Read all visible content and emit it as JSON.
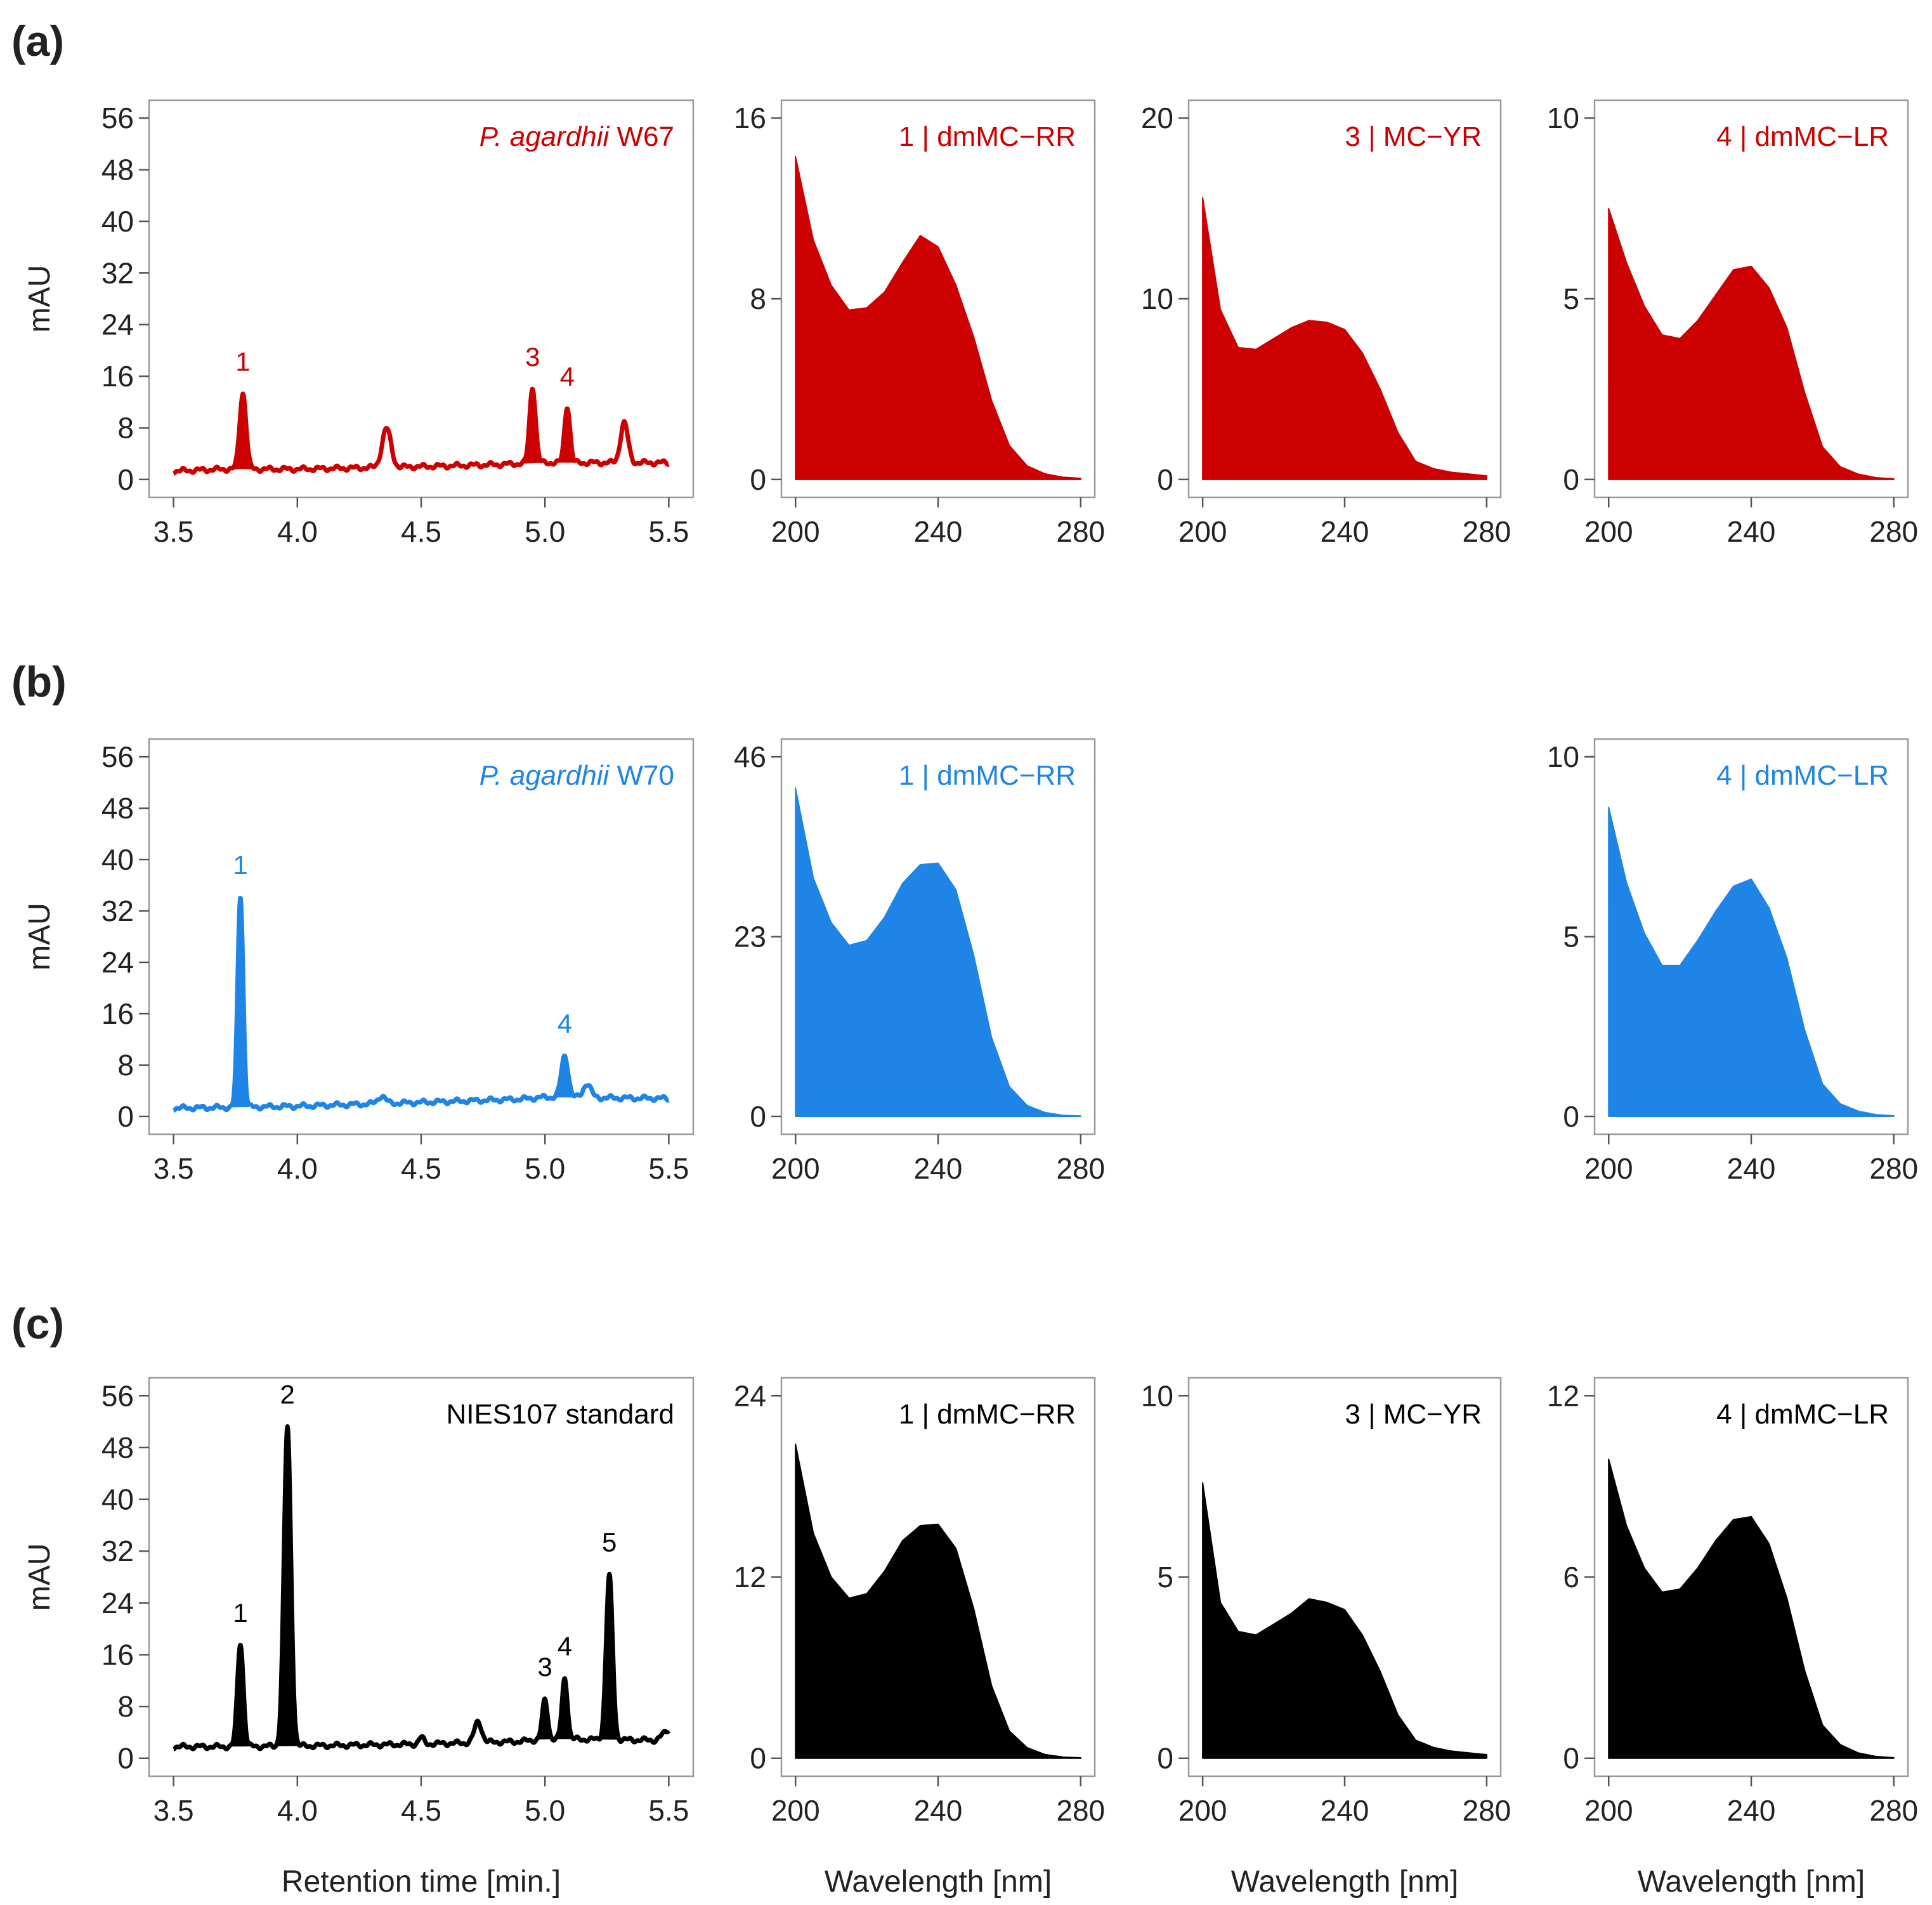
{
  "figure": {
    "row_labels": [
      "(a)",
      "(b)",
      "(c)"
    ],
    "colors": {
      "a": "#cc0000",
      "b": "#1e84e6",
      "c": "#000000",
      "text": "#222222"
    }
  },
  "chart_data": [
    {
      "id": "a-chrom",
      "type": "line",
      "row": "(a)",
      "title": "P. agardhii W67",
      "title_italic": "P. agardhii",
      "title_rest": " W67",
      "xlabel": "",
      "ylabel": "mAU",
      "xlim": [
        3.5,
        5.5
      ],
      "ylim": [
        0,
        56
      ],
      "xticks": [
        "3.5",
        "4.0",
        "4.5",
        "5.0",
        "5.5"
      ],
      "yticks": [
        "0",
        "8",
        "16",
        "24",
        "32",
        "40",
        "48",
        "56"
      ],
      "baseline": [
        [
          3.5,
          1.3
        ],
        [
          3.7,
          1.6
        ],
        [
          4.0,
          1.6
        ],
        [
          4.5,
          2.0
        ],
        [
          4.8,
          2.3
        ],
        [
          5.0,
          2.6
        ],
        [
          5.5,
          2.6
        ]
      ],
      "peaks": [
        {
          "label": "1",
          "x": 3.78,
          "height": 11.8,
          "sigma": 0.013,
          "filled": true
        },
        {
          "label": "",
          "x": 4.36,
          "height": 6.0,
          "sigma": 0.018,
          "filled": false
        },
        {
          "label": "3",
          "x": 4.95,
          "height": 11.8,
          "sigma": 0.012,
          "filled": true
        },
        {
          "label": "4",
          "x": 5.09,
          "height": 8.8,
          "sigma": 0.011,
          "filled": true
        },
        {
          "label": "",
          "x": 5.32,
          "height": 6.2,
          "sigma": 0.015,
          "filled": false
        }
      ]
    },
    {
      "id": "a-spec1",
      "type": "area",
      "row": "(a)",
      "title": "1 | dmMC−RR",
      "xlim": [
        200,
        280
      ],
      "ylim": [
        0,
        16
      ],
      "xticks": [
        "200",
        "240",
        "280"
      ],
      "yticks": [
        "0",
        "8",
        "16"
      ],
      "x": [
        200,
        205,
        210,
        215,
        220,
        225,
        230,
        235,
        240,
        245,
        250,
        255,
        260,
        265,
        270,
        275,
        280
      ],
      "y": [
        14.3,
        10.6,
        8.6,
        7.5,
        7.6,
        8.3,
        9.6,
        10.8,
        10.3,
        8.6,
        6.3,
        3.5,
        1.5,
        0.6,
        0.25,
        0.1,
        0.05
      ]
    },
    {
      "id": "a-spec3",
      "type": "area",
      "row": "(a)",
      "title": "3 | MC−YR",
      "xlim": [
        200,
        280
      ],
      "ylim": [
        0,
        20
      ],
      "xticks": [
        "200",
        "240",
        "280"
      ],
      "yticks": [
        "0",
        "10",
        "20"
      ],
      "x": [
        200,
        205,
        210,
        215,
        220,
        225,
        230,
        235,
        240,
        245,
        250,
        255,
        260,
        265,
        270,
        275,
        280
      ],
      "y": [
        15.6,
        9.4,
        7.3,
        7.2,
        7.8,
        8.4,
        8.8,
        8.7,
        8.3,
        7.0,
        5.0,
        2.6,
        1.0,
        0.6,
        0.4,
        0.3,
        0.2
      ]
    },
    {
      "id": "a-spec4",
      "type": "area",
      "row": "(a)",
      "title": "4 | dmMC−LR",
      "xlim": [
        200,
        280
      ],
      "ylim": [
        0,
        10
      ],
      "xticks": [
        "200",
        "240",
        "280"
      ],
      "yticks": [
        "0",
        "5",
        "10"
      ],
      "x": [
        200,
        205,
        210,
        215,
        220,
        225,
        230,
        235,
        240,
        245,
        250,
        255,
        260,
        265,
        270,
        275,
        280
      ],
      "y": [
        7.5,
        6.0,
        4.8,
        4.0,
        3.9,
        4.4,
        5.1,
        5.8,
        5.9,
        5.3,
        4.2,
        2.4,
        0.9,
        0.35,
        0.15,
        0.05,
        0.02
      ]
    },
    {
      "id": "b-chrom",
      "type": "line",
      "row": "(b)",
      "title": "P. agardhii W70",
      "title_italic": "P. agardhii",
      "title_rest": " W70",
      "xlabel": "",
      "ylabel": "mAU",
      "xlim": [
        3.5,
        5.5
      ],
      "ylim": [
        0,
        56
      ],
      "xticks": [
        "3.5",
        "4.0",
        "4.5",
        "5.0",
        "5.5"
      ],
      "yticks": [
        "0",
        "8",
        "16",
        "24",
        "32",
        "40",
        "48",
        "56"
      ],
      "baseline": [
        [
          3.5,
          1.3
        ],
        [
          3.7,
          1.4
        ],
        [
          4.0,
          1.6
        ],
        [
          4.5,
          2.2
        ],
        [
          4.9,
          2.7
        ],
        [
          5.0,
          3.0
        ],
        [
          5.5,
          2.8
        ]
      ],
      "peaks": [
        {
          "label": "1",
          "x": 3.77,
          "height": 33.0,
          "sigma": 0.011,
          "filled": true
        },
        {
          "label": "",
          "x": 4.34,
          "height": 1.2,
          "sigma": 0.015,
          "filled": false
        },
        {
          "label": "4",
          "x": 5.08,
          "height": 6.5,
          "sigma": 0.014,
          "filled": true
        },
        {
          "label": "",
          "x": 5.17,
          "height": 2.2,
          "sigma": 0.015,
          "filled": false
        }
      ]
    },
    {
      "id": "b-spec1",
      "type": "area",
      "row": "(b)",
      "title": "1 | dmMC−RR",
      "xlim": [
        200,
        280
      ],
      "ylim": [
        0,
        46
      ],
      "xticks": [
        "200",
        "240",
        "280"
      ],
      "yticks": [
        "0",
        "23",
        "46"
      ],
      "x": [
        200,
        205,
        210,
        215,
        220,
        225,
        230,
        235,
        240,
        245,
        250,
        255,
        260,
        265,
        270,
        275,
        280
      ],
      "y": [
        42.0,
        30.5,
        24.8,
        21.9,
        22.5,
        25.5,
        29.8,
        32.2,
        32.4,
        29.0,
        20.6,
        10.1,
        3.8,
        1.4,
        0.5,
        0.15,
        0.05
      ]
    },
    {
      "id": "b-spec4",
      "type": "area",
      "row": "(b)",
      "title": "4 | dmMC−LR",
      "xlim": [
        200,
        280
      ],
      "ylim": [
        0,
        10
      ],
      "xticks": [
        "200",
        "240",
        "280"
      ],
      "yticks": [
        "0",
        "5",
        "10"
      ],
      "x": [
        200,
        205,
        210,
        215,
        220,
        225,
        230,
        235,
        240,
        245,
        250,
        255,
        260,
        265,
        270,
        275,
        280
      ],
      "y": [
        8.6,
        6.5,
        5.1,
        4.2,
        4.2,
        4.9,
        5.7,
        6.4,
        6.6,
        5.8,
        4.4,
        2.4,
        0.9,
        0.35,
        0.15,
        0.05,
        0.02
      ]
    },
    {
      "id": "c-chrom",
      "type": "line",
      "row": "(c)",
      "title": "NIES107 standard",
      "title_italic": "",
      "title_rest": "NIES107 standard",
      "xlabel": "Retention time [min.]",
      "ylabel": "mAU",
      "xlim": [
        3.5,
        5.5
      ],
      "ylim": [
        0,
        56
      ],
      "xticks": [
        "3.5",
        "4.0",
        "4.5",
        "5.0",
        "5.5"
      ],
      "yticks": [
        "0",
        "8",
        "16",
        "24",
        "32",
        "40",
        "48",
        "56"
      ],
      "baseline": [
        [
          3.5,
          1.8
        ],
        [
          3.7,
          1.8
        ],
        [
          4.0,
          1.9
        ],
        [
          4.5,
          2.2
        ],
        [
          4.9,
          2.6
        ],
        [
          5.0,
          3.0
        ],
        [
          5.45,
          2.8
        ],
        [
          5.5,
          4.5
        ]
      ],
      "peaks": [
        {
          "label": "1",
          "x": 3.77,
          "height": 16.0,
          "sigma": 0.012,
          "filled": true
        },
        {
          "label": "2",
          "x": 3.96,
          "height": 49.3,
          "sigma": 0.014,
          "filled": true
        },
        {
          "label": "",
          "x": 4.5,
          "height": 1.0,
          "sigma": 0.01,
          "filled": false
        },
        {
          "label": "",
          "x": 4.73,
          "height": 3.2,
          "sigma": 0.015,
          "filled": false
        },
        {
          "label": "3",
          "x": 5.0,
          "height": 6.0,
          "sigma": 0.011,
          "filled": true
        },
        {
          "label": "4",
          "x": 5.08,
          "height": 9.4,
          "sigma": 0.011,
          "filled": true
        },
        {
          "label": "5",
          "x": 5.26,
          "height": 25.3,
          "sigma": 0.013,
          "filled": true
        }
      ]
    },
    {
      "id": "c-spec1",
      "type": "area",
      "row": "(c)",
      "title": "1 | dmMC−RR",
      "xlabel": "Wavelength [nm]",
      "xlim": [
        200,
        280
      ],
      "ylim": [
        0,
        24
      ],
      "xticks": [
        "200",
        "240",
        "280"
      ],
      "yticks": [
        "0",
        "12",
        "24"
      ],
      "x": [
        200,
        205,
        210,
        215,
        220,
        225,
        230,
        235,
        240,
        245,
        250,
        255,
        260,
        265,
        270,
        275,
        280
      ],
      "y": [
        20.8,
        14.9,
        12.0,
        10.6,
        10.9,
        12.4,
        14.4,
        15.4,
        15.5,
        13.9,
        9.9,
        4.8,
        1.8,
        0.7,
        0.25,
        0.08,
        0.03
      ]
    },
    {
      "id": "c-spec3",
      "type": "area",
      "row": "(c)",
      "title": "3 | MC−YR",
      "xlabel": "Wavelength [nm]",
      "xlim": [
        200,
        280
      ],
      "ylim": [
        0,
        10
      ],
      "xticks": [
        "200",
        "240",
        "280"
      ],
      "yticks": [
        "0",
        "5",
        "10"
      ],
      "x": [
        200,
        205,
        210,
        215,
        220,
        225,
        230,
        235,
        240,
        245,
        250,
        255,
        260,
        265,
        270,
        275,
        280
      ],
      "y": [
        7.6,
        4.3,
        3.5,
        3.4,
        3.7,
        4.0,
        4.4,
        4.3,
        4.1,
        3.4,
        2.4,
        1.2,
        0.5,
        0.3,
        0.2,
        0.15,
        0.1
      ]
    },
    {
      "id": "c-spec4",
      "type": "area",
      "row": "(c)",
      "title": "4 | dmMC−LR",
      "xlabel": "Wavelength [nm]",
      "xlim": [
        200,
        280
      ],
      "ylim": [
        0,
        12
      ],
      "xticks": [
        "200",
        "240",
        "280"
      ],
      "yticks": [
        "0",
        "6",
        "12"
      ],
      "x": [
        200,
        205,
        210,
        215,
        220,
        225,
        230,
        235,
        240,
        245,
        250,
        255,
        260,
        265,
        270,
        275,
        280
      ],
      "y": [
        9.9,
        7.7,
        6.3,
        5.5,
        5.6,
        6.3,
        7.2,
        7.9,
        8.0,
        7.1,
        5.3,
        2.9,
        1.1,
        0.45,
        0.18,
        0.06,
        0.02
      ]
    }
  ]
}
